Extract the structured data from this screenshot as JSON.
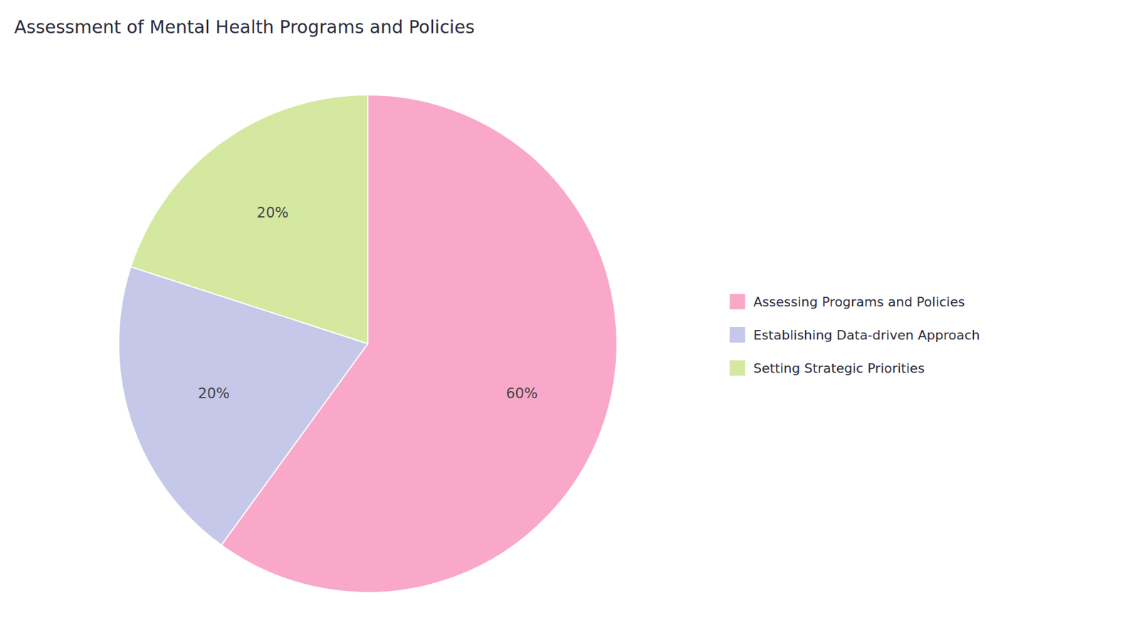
{
  "chart_data": {
    "type": "pie",
    "title": "Assessment of Mental Health Programs and Policies",
    "categories": [
      "Assessing Programs and Policies",
      "Establishing Data-driven Approach",
      "Setting Strategic Priorities"
    ],
    "values": [
      60,
      20,
      20
    ],
    "value_labels": [
      "60%",
      "20%",
      "20%"
    ],
    "colors": [
      "#F9A8C9",
      "#C5C8E8",
      "#D4E8A0"
    ],
    "data_labels": true,
    "legend": "right"
  }
}
